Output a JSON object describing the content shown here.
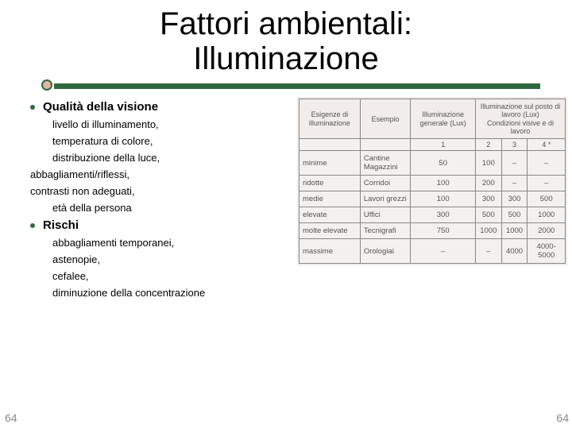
{
  "title_line1": "Fattori ambientali:",
  "title_line2": "Illuminazione",
  "page_left": "64",
  "page_right": "64",
  "colors": {
    "accent": "#2f6a3f",
    "circle_fill": "#e6b5a0",
    "text": "#000000",
    "table_border": "#888888",
    "table_bg": "#f3f1ef",
    "page_num": "#8a8a8a"
  },
  "list": {
    "section1": "Qualità della visione",
    "s1_items": [
      "livello di illuminamento,",
      "temperatura di colore,",
      "distribuzione della luce,"
    ],
    "s1_out": [
      "abbagliamenti/riflessi,",
      "contrasti non adeguati,"
    ],
    "s1_last": "età della persona",
    "section2": "Rischi",
    "s2_items": [
      "abbagliamenti temporanei,",
      "astenopie,",
      "cefalee,",
      "diminuzione della concentrazione"
    ]
  },
  "table": {
    "h1": "Esigenze di illuminazione",
    "h2": "Esempio",
    "h3": "Illuminazione generale (Lux)",
    "h4": "Illuminazione sul posto di lavoro (Lux)",
    "sub4": "Condizioni visive e di lavoro",
    "subcols": [
      "1",
      "2",
      "3",
      "4 *"
    ],
    "rows": [
      {
        "r0": "minime",
        "r1": "Cantine Magazzini",
        "c": [
          "50",
          "100",
          "–",
          "–"
        ]
      },
      {
        "r0": "ridotte",
        "r1": "Corridoi",
        "c": [
          "100",
          "200",
          "–",
          "–"
        ]
      },
      {
        "r0": "medie",
        "r1": "Lavori grezzi",
        "c": [
          "100",
          "300",
          "300",
          "500"
        ]
      },
      {
        "r0": "elevate",
        "r1": "Uffici",
        "c": [
          "300",
          "500",
          "500",
          "1000"
        ]
      },
      {
        "r0": "molte elevate",
        "r1": "Tecnigrafi",
        "c": [
          "750",
          "1000",
          "1000",
          "2000"
        ]
      },
      {
        "r0": "massime",
        "r1": "Orologiai",
        "c": [
          "–",
          "–",
          "4000",
          "4000-5000"
        ]
      }
    ]
  }
}
